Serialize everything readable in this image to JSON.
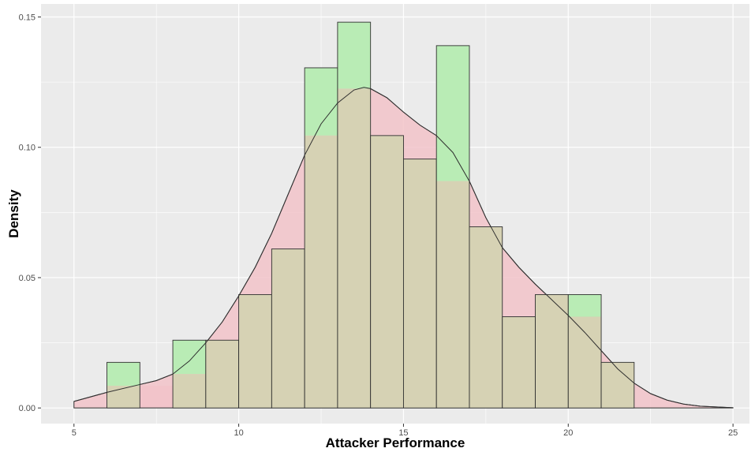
{
  "chart_data": {
    "type": "bar",
    "title": "",
    "xlabel": "Attacker Performance",
    "ylabel": "Density",
    "xlim": [
      4,
      25.5
    ],
    "ylim": [
      -0.006,
      0.155
    ],
    "grid": true,
    "x_ticks": [
      5,
      10,
      15,
      20,
      25
    ],
    "y_ticks": [
      0.0,
      0.05,
      0.1,
      0.15
    ],
    "x_tick_labels": [
      "5",
      "10",
      "15",
      "20",
      "25"
    ],
    "y_tick_labels": [
      "0.00",
      "0.05",
      "0.10",
      "0.15"
    ],
    "histogram_green": {
      "bin_width": 1,
      "bins": [
        {
          "x0": 6,
          "value": 0.0175
        },
        {
          "x0": 8,
          "value": 0.026
        },
        {
          "x0": 9,
          "value": 0.026
        },
        {
          "x0": 10,
          "value": 0.0435
        },
        {
          "x0": 11,
          "value": 0.061
        },
        {
          "x0": 12,
          "value": 0.1305
        },
        {
          "x0": 13,
          "value": 0.148
        },
        {
          "x0": 14,
          "value": 0.1045
        },
        {
          "x0": 15,
          "value": 0.0955
        },
        {
          "x0": 16,
          "value": 0.139
        },
        {
          "x0": 17,
          "value": 0.0695
        },
        {
          "x0": 18,
          "value": 0.035
        },
        {
          "x0": 19,
          "value": 0.0435
        },
        {
          "x0": 20,
          "value": 0.0435
        },
        {
          "x0": 21,
          "value": 0.0175
        }
      ]
    },
    "histogram_pink": {
      "bin_width": 1,
      "bins": [
        {
          "x0": 5,
          "value": 0.0
        },
        {
          "x0": 6,
          "value": 0.0085
        },
        {
          "x0": 7,
          "value": 0.0085
        },
        {
          "x0": 8,
          "value": 0.013
        },
        {
          "x0": 9,
          "value": 0.026
        },
        {
          "x0": 10,
          "value": 0.0435
        },
        {
          "x0": 11,
          "value": 0.061
        },
        {
          "x0": 12,
          "value": 0.1045
        },
        {
          "x0": 13,
          "value": 0.1225
        },
        {
          "x0": 14,
          "value": 0.1045
        },
        {
          "x0": 15,
          "value": 0.0955
        },
        {
          "x0": 16,
          "value": 0.087
        },
        {
          "x0": 17,
          "value": 0.0695
        },
        {
          "x0": 18,
          "value": 0.035
        },
        {
          "x0": 19,
          "value": 0.0435
        },
        {
          "x0": 20,
          "value": 0.035
        },
        {
          "x0": 21,
          "value": 0.0175
        }
      ]
    },
    "density_curve": {
      "x": [
        5,
        6,
        7,
        7.5,
        8,
        8.5,
        9,
        9.5,
        10,
        10.5,
        11,
        11.5,
        12,
        12.5,
        13,
        13.5,
        13.8,
        14,
        14.5,
        15,
        15.5,
        16,
        16.5,
        17,
        17.5,
        18,
        18.5,
        19,
        19.5,
        20,
        20.5,
        21,
        21.5,
        22,
        22.5,
        23,
        23.5,
        24,
        25
      ],
      "y": [
        0.0025,
        0.006,
        0.009,
        0.0105,
        0.013,
        0.018,
        0.025,
        0.033,
        0.043,
        0.054,
        0.067,
        0.082,
        0.097,
        0.109,
        0.117,
        0.122,
        0.123,
        0.1225,
        0.119,
        0.1135,
        0.1085,
        0.1045,
        0.098,
        0.087,
        0.073,
        0.0615,
        0.054,
        0.0475,
        0.0415,
        0.0355,
        0.029,
        0.022,
        0.015,
        0.0095,
        0.0055,
        0.003,
        0.0015,
        0.0007,
        0.0001
      ]
    },
    "colors": {
      "panel": "#ebebeb",
      "grid": "#ffffff",
      "green_fill": "#b9ecb5",
      "pink_fill": "#f2c3c9",
      "overlap_fill": "#d6d2b4",
      "outline": "#2f2f2f"
    }
  }
}
